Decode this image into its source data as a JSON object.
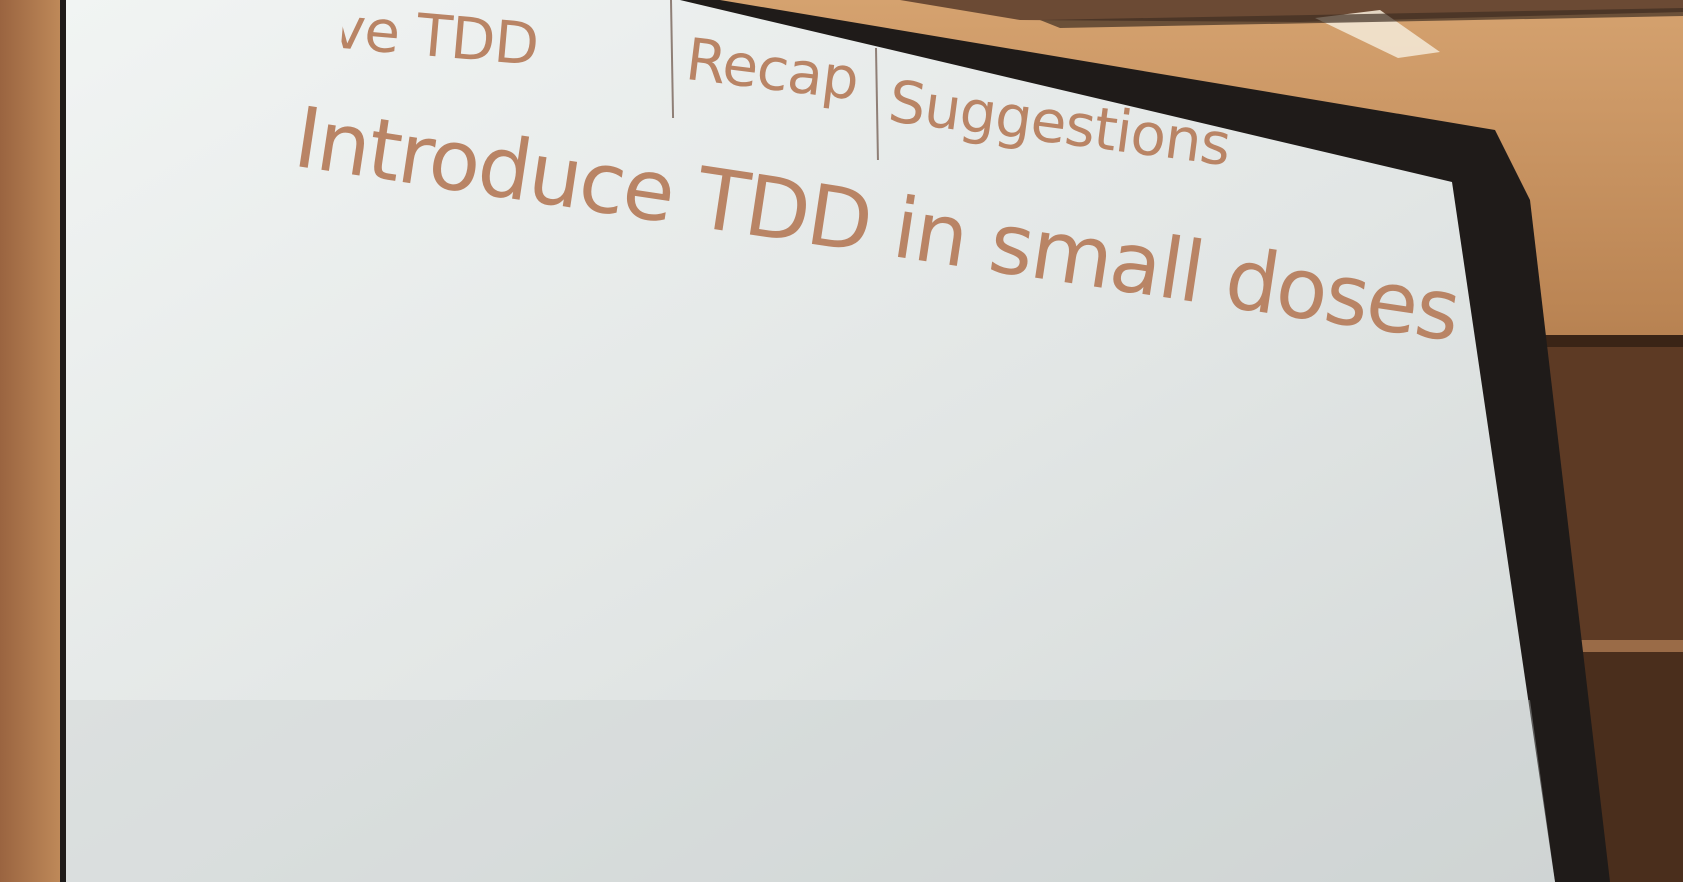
{
  "slide": {
    "tabs": [
      {
        "label": "arrive TDD"
      },
      {
        "label": "Recap"
      },
      {
        "label": "Suggestions"
      }
    ],
    "title": "Introduce TDD in small doses"
  },
  "colors": {
    "slide_text": "#b98465",
    "screen": "#e4e7e6",
    "screen_frame": "#1f1b19",
    "wall": "#8a5a38"
  }
}
